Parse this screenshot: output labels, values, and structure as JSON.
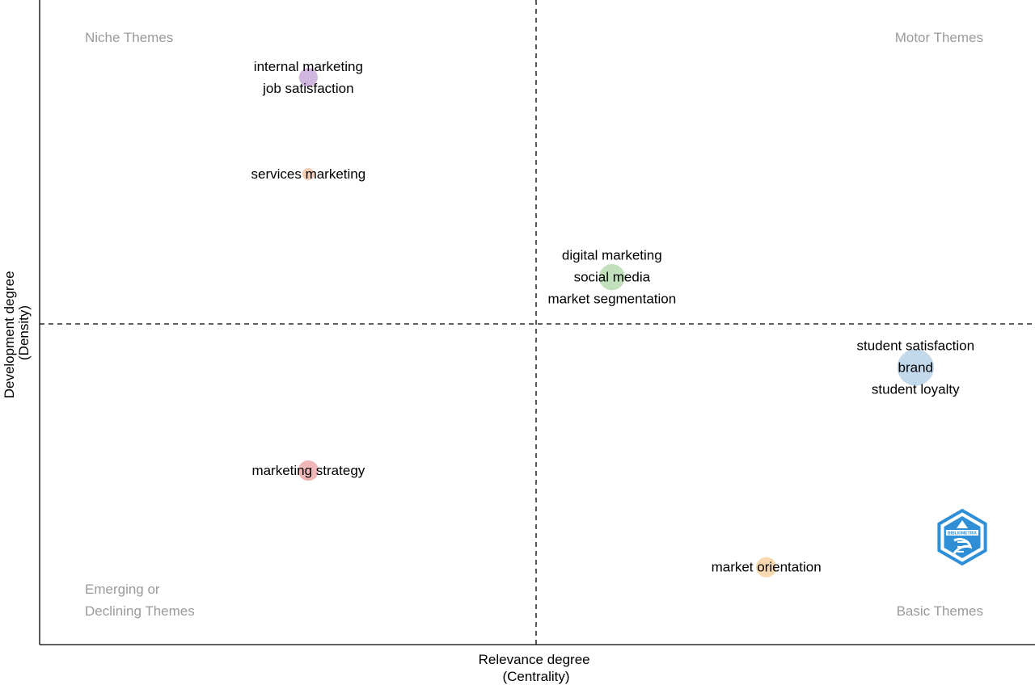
{
  "chart_data": {
    "type": "scatter",
    "variant": "thematic-map-bubble",
    "title": "",
    "xlabel": [
      "Relevance degree",
      "(Centrality)"
    ],
    "ylabel": [
      "Development degree",
      "(Density)"
    ],
    "xlim": [
      0,
      1
    ],
    "ylim": [
      0,
      1
    ],
    "x_divider": 0.5,
    "y_divider": 0.5,
    "grid": false,
    "legend": "none",
    "quadrants": [
      {
        "key": "niche",
        "lines": [
          "Niche Themes"
        ],
        "position": "top-left"
      },
      {
        "key": "motor",
        "lines": [
          "Motor Themes"
        ],
        "position": "top-right"
      },
      {
        "key": "emerging",
        "lines": [
          "Emerging or",
          "Declining Themes"
        ],
        "position": "bottom-left"
      },
      {
        "key": "basic",
        "lines": [
          "Basic Themes"
        ],
        "position": "bottom-right"
      }
    ],
    "clusters": [
      {
        "labels": [
          "internal marketing",
          "job satisfaction"
        ],
        "x": 0.27,
        "y": 0.88,
        "size": 2.5,
        "color": "#c9a9d9"
      },
      {
        "labels": [
          "services marketing"
        ],
        "x": 0.27,
        "y": 0.73,
        "size": 1,
        "color": "#f2c6a8"
      },
      {
        "labels": [
          "digital marketing",
          "social media",
          "market segmentation"
        ],
        "x": 0.575,
        "y": 0.57,
        "size": 5,
        "color": "#b9dbb0"
      },
      {
        "labels": [
          "student satisfaction",
          "brand",
          "student loyalty"
        ],
        "x": 0.88,
        "y": 0.43,
        "size": 10,
        "color": "#b7d1e8"
      },
      {
        "labels": [
          "marketing strategy"
        ],
        "x": 0.27,
        "y": 0.27,
        "size": 3,
        "color": "#ecaaaa"
      },
      {
        "labels": [
          "market orientation"
        ],
        "x": 0.73,
        "y": 0.12,
        "size": 3,
        "color": "#f7d2a3"
      }
    ]
  },
  "logo": {
    "icon": "bibliometrix-logo-icon",
    "color": "#2f8fd6",
    "text": "BIBLIOMETRIX"
  }
}
